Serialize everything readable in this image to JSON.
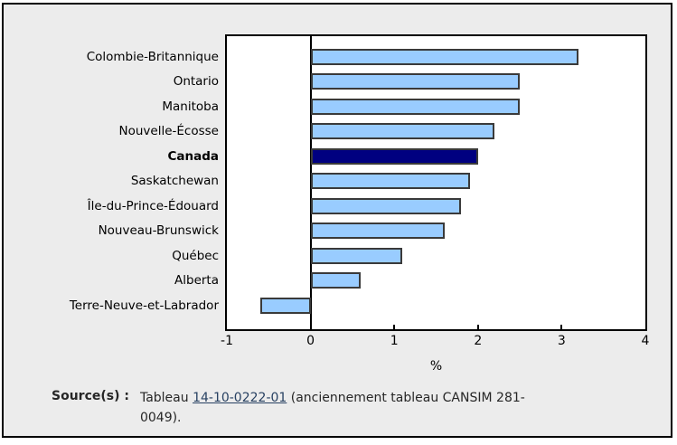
{
  "frame": {
    "background_color": "#ececec",
    "border_color": "#000000"
  },
  "chart_data": {
    "type": "bar",
    "orientation": "horizontal",
    "title": "",
    "categories": [
      "Colombie-Britannique",
      "Ontario",
      "Manitoba",
      "Nouvelle-Écosse",
      "Canada",
      "Saskatchewan",
      "Île-du-Prince-Édouard",
      "Nouveau-Brunswick",
      "Québec",
      "Alberta",
      "Terre-Neuve-et-Labrador"
    ],
    "values": [
      3.2,
      2.5,
      2.5,
      2.2,
      2.0,
      1.9,
      1.8,
      1.6,
      1.1,
      0.6,
      -0.6
    ],
    "highlight_category": "Canada",
    "highlight_index": 4,
    "xlabel": "%",
    "xlim": [
      -1,
      4
    ],
    "x_ticks": [
      -1,
      0,
      1,
      2,
      3,
      4
    ],
    "x_tick_marks": [
      1,
      2,
      3
    ],
    "zero_line": true,
    "grid": false,
    "legend": "none",
    "bar_color": "#99ccff",
    "highlight_color": "#000080",
    "bar_border_color": "#3a3a3a"
  },
  "source": {
    "label": "Source(s) :",
    "text_before_link": "Tableau ",
    "link_text": "14-10-0222-01",
    "text_after_link_line1": " (anciennement tableau CANSIM 281-",
    "text_after_link_line2": "0049).",
    "link_color": "#284162"
  }
}
